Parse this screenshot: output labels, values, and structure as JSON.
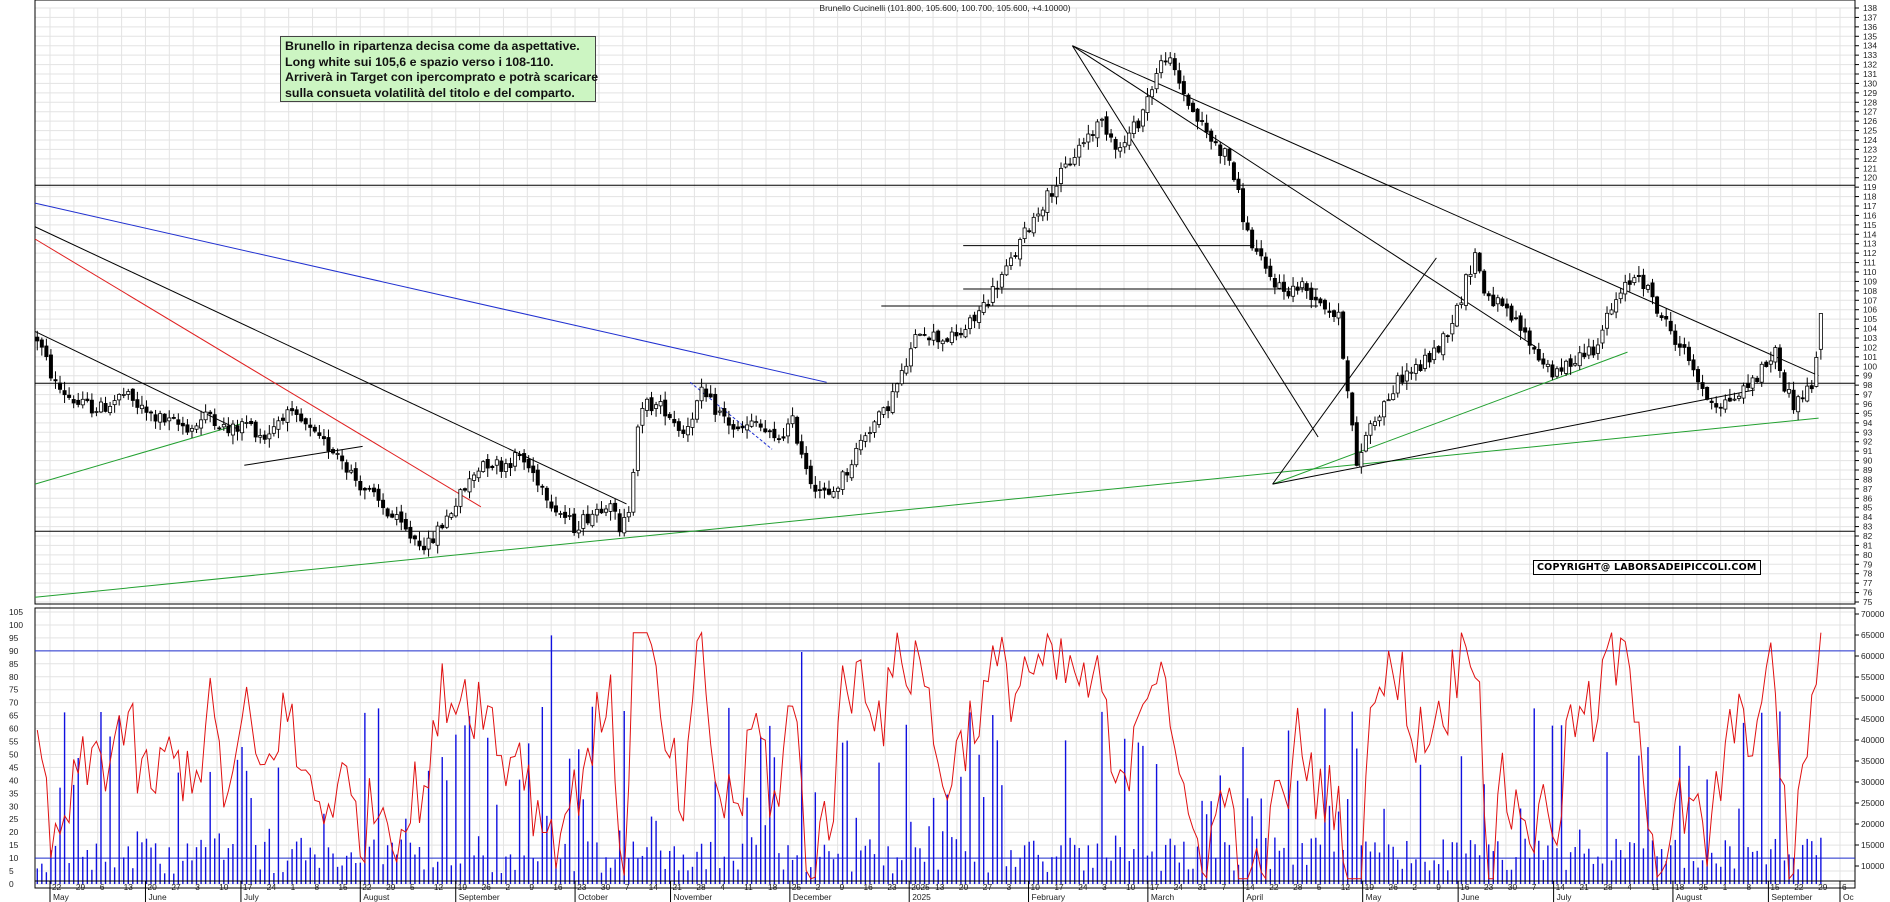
{
  "title": "Brunello Cucinelli (101.800, 105.600, 100.700, 105.600, +4.10000)",
  "annotation": {
    "lines": [
      "Brunello in ripartenza decisa come da aspettative.",
      "Long white sui 105,6  e spazio verso i 108-110.",
      "Arriverà in Target con ipercomprato e potrà scaricare",
      "sulla consueta volatilità del titolo e del comparto."
    ]
  },
  "copyright": "COPYRIGHT@ LABORSADEIPICCOLI.COM",
  "colors": {
    "candle": "#000000",
    "oscillator": "#e01010",
    "volume": "#1010e0",
    "trend_blue": "#2030d0",
    "trend_red": "#e02020",
    "trend_green": "#22a030",
    "grid": "#e3e3e3"
  },
  "chart_data": [
    {
      "type": "candlestick",
      "title": "Brunello Cucinelli (101.800, 105.600, 100.700, 105.600, +4.10000)",
      "ylim": [
        75,
        138
      ],
      "y_ticks_step": 1,
      "last_ohlc": {
        "open": 101.8,
        "high": 105.6,
        "low": 100.7,
        "close": 105.6,
        "change": 4.1
      },
      "horizontal_levels": [
        119.2,
        98.2,
        82.5,
        112.8,
        108.2,
        106.4
      ],
      "price_path": [
        [
          0,
          103
        ],
        [
          4,
          98
        ],
        [
          9,
          96
        ],
        [
          14,
          95.5
        ],
        [
          19,
          97
        ],
        [
          24,
          95
        ],
        [
          29,
          94
        ],
        [
          34,
          93.5
        ],
        [
          38,
          95
        ],
        [
          42,
          93
        ],
        [
          46,
          94
        ],
        [
          50,
          92.5
        ],
        [
          54,
          95
        ],
        [
          58,
          94
        ],
        [
          62,
          92
        ],
        [
          66,
          91
        ],
        [
          70,
          88
        ],
        [
          74,
          86
        ],
        [
          78,
          84
        ],
        [
          82,
          82
        ],
        [
          86,
          81
        ],
        [
          90,
          84
        ],
        [
          94,
          87
        ],
        [
          98,
          90
        ],
        [
          102,
          89.5
        ],
        [
          106,
          90.5
        ],
        [
          110,
          88
        ],
        [
          114,
          85
        ],
        [
          118,
          83
        ],
        [
          122,
          84.5
        ],
        [
          126,
          86
        ],
        [
          128,
          82
        ],
        [
          130,
          85
        ],
        [
          132,
          94
        ],
        [
          134,
          96
        ],
        [
          138,
          95.5
        ],
        [
          142,
          93
        ],
        [
          146,
          97
        ],
        [
          150,
          95
        ],
        [
          154,
          93
        ],
        [
          158,
          94
        ],
        [
          162,
          92
        ],
        [
          166,
          94
        ],
        [
          170,
          88
        ],
        [
          174,
          86
        ],
        [
          178,
          89
        ],
        [
          182,
          93
        ],
        [
          186,
          95
        ],
        [
          190,
          99
        ],
        [
          194,
          104
        ],
        [
          198,
          103
        ],
        [
          202,
          103
        ],
        [
          206,
          105
        ],
        [
          210,
          108
        ],
        [
          214,
          111
        ],
        [
          218,
          115
        ],
        [
          222,
          118
        ],
        [
          226,
          121
        ],
        [
          230,
          124
        ],
        [
          234,
          126
        ],
        [
          238,
          123
        ],
        [
          242,
          126
        ],
        [
          246,
          131
        ],
        [
          248,
          133
        ],
        [
          250,
          131
        ],
        [
          254,
          127
        ],
        [
          258,
          124
        ],
        [
          262,
          122
        ],
        [
          266,
          114
        ],
        [
          270,
          110
        ],
        [
          274,
          108
        ],
        [
          278,
          108.5
        ],
        [
          282,
          107
        ],
        [
          286,
          105
        ],
        [
          288,
          98
        ],
        [
          290,
          89
        ],
        [
          292,
          93
        ],
        [
          296,
          96
        ],
        [
          300,
          99
        ],
        [
          304,
          100
        ],
        [
          308,
          102
        ],
        [
          312,
          106
        ],
        [
          316,
          112
        ],
        [
          318,
          108
        ],
        [
          322,
          106
        ],
        [
          326,
          104
        ],
        [
          330,
          101
        ],
        [
          334,
          99
        ],
        [
          338,
          101
        ],
        [
          342,
          102
        ],
        [
          346,
          106
        ],
        [
          350,
          109
        ],
        [
          352,
          110
        ],
        [
          356,
          106
        ],
        [
          360,
          103
        ],
        [
          364,
          100
        ],
        [
          366,
          97
        ],
        [
          370,
          96
        ],
        [
          374,
          97
        ],
        [
          378,
          99
        ],
        [
          382,
          101.5
        ],
        [
          384,
          98
        ],
        [
          386,
          96
        ],
        [
          390,
          98
        ],
        [
          392,
          104
        ]
      ],
      "trendlines": [
        {
          "color": "trend_blue",
          "from": [
            0,
            117.3
          ],
          "to": [
            174,
            98.3
          ]
        },
        {
          "color": "trend_red",
          "from": [
            0,
            113.5
          ],
          "to": [
            98,
            85.1
          ]
        },
        {
          "color": "candle",
          "from": [
            0,
            114.8
          ],
          "to": [
            130,
            85.4
          ]
        },
        {
          "color": "candle",
          "from": [
            0,
            103.7
          ],
          "to": [
            46,
            93
          ]
        },
        {
          "color": "candle",
          "from": [
            46,
            89.5
          ],
          "to": [
            72,
            91.5
          ]
        },
        {
          "color": "trend_green",
          "from": [
            0,
            87.5
          ],
          "to": [
            46,
            94
          ]
        },
        {
          "color": "trend_green",
          "from": [
            0,
            75.5
          ],
          "to": [
            392,
            94.5
          ]
        },
        {
          "color": "trend_green",
          "from": [
            272,
            87.5
          ],
          "to": [
            350,
            101.5
          ]
        },
        {
          "color": "candle",
          "from": [
            272,
            87.5
          ],
          "to": [
            378,
            97.5
          ]
        },
        {
          "color": "candle",
          "from": [
            228,
            134
          ],
          "to": [
            392,
            99
          ]
        },
        {
          "color": "candle",
          "from": [
            228,
            134
          ],
          "to": [
            330,
            102
          ]
        },
        {
          "color": "candle",
          "from": [
            228,
            134
          ],
          "to": [
            282,
            92.5
          ]
        },
        {
          "color": "candle",
          "from": [
            272,
            87.5
          ],
          "to": [
            308,
            111.5
          ]
        }
      ]
    },
    {
      "type": "line",
      "name": "oscillator",
      "ylim": [
        0,
        105
      ],
      "y_ticks": [
        0,
        5,
        10,
        15,
        20,
        25,
        30,
        35,
        40,
        45,
        50,
        55,
        60,
        65,
        70,
        75,
        80,
        85,
        90,
        95,
        100,
        105
      ],
      "horizontal_levels": [
        90,
        10
      ],
      "right_axis_ticks": [
        "10000",
        "15000",
        "20000",
        "25000",
        "30000",
        "35000",
        "40000",
        "45000",
        "50000",
        "55000",
        "60000",
        "65000",
        "70000"
      ]
    }
  ],
  "x_axis": {
    "day_ticks": [
      "22",
      "29",
      "6",
      "13",
      "20",
      "27",
      "3",
      "10",
      "17",
      "24",
      "1",
      "8",
      "15",
      "22",
      "29",
      "5",
      "12",
      "19",
      "26",
      "2",
      "9",
      "16",
      "23",
      "30",
      "7",
      "14",
      "21",
      "28",
      "4",
      "11",
      "18",
      "25",
      "2",
      "9",
      "16",
      "23",
      "2025",
      "13",
      "20",
      "27",
      "3",
      "10",
      "17",
      "24",
      "3",
      "10",
      "17",
      "24",
      "31",
      "7",
      "14",
      "22",
      "28",
      "5",
      "12",
      "19",
      "26",
      "2",
      "9",
      "16",
      "23",
      "30",
      "7",
      "14",
      "21",
      "28",
      "4",
      "11",
      "18",
      "25",
      "1",
      "8",
      "15",
      "22",
      "29",
      "6"
    ],
    "months": [
      "May",
      "June",
      "July",
      "August",
      "September",
      "October",
      "November",
      "December",
      "2025",
      "February",
      "March",
      "April",
      "May",
      "June",
      "July",
      "August",
      "September",
      "Oc"
    ]
  }
}
